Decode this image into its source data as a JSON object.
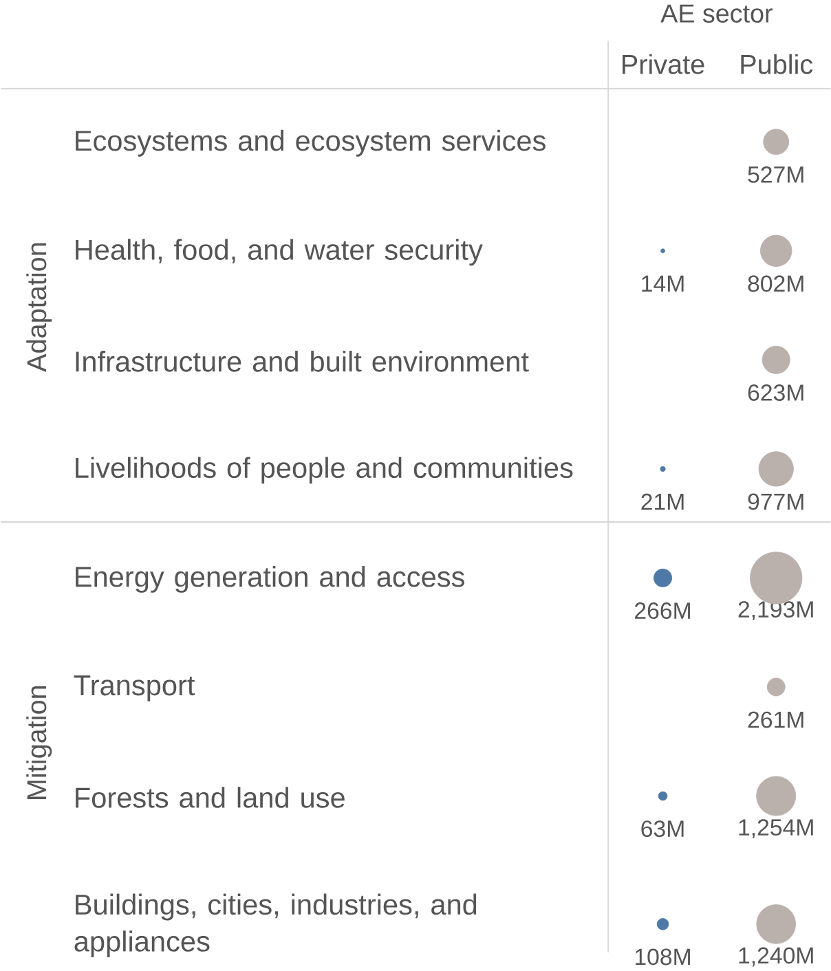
{
  "chart_data": {
    "type": "other",
    "xlabel": "AE sector",
    "categories": [
      "Ecosystems and ecosystem services",
      "Health, food, and water security",
      "Infrastructure and built environment",
      "Livelihoods of people and communities",
      "Energy generation and access",
      "Transport",
      "Forests and land use",
      "Buildings, cities, industries, and appliances"
    ],
    "series": [
      {
        "name": "Private",
        "colors": [
          null,
          "#4e79a7",
          null,
          "#4e79a7",
          "#4e79a7",
          null,
          "#4e79a7",
          "#4e79a7"
        ],
        "values": [
          null,
          14,
          null,
          21,
          266,
          null,
          63,
          108
        ],
        "value_labels": [
          null,
          "14M",
          null,
          "21M",
          "266M",
          null,
          "63M",
          "108M"
        ]
      },
      {
        "name": "Public",
        "colors": [
          "#bab0ac",
          "#bab0ac",
          "#bab0ac",
          "#bab0ac",
          "#bab0ac",
          "#bab0ac",
          "#bab0ac",
          "#bab0ac"
        ],
        "values": [
          527,
          802,
          623,
          977,
          2193,
          261,
          1254,
          1240
        ],
        "value_labels": [
          "527M",
          "802M",
          "623M",
          "977M",
          "2,193M",
          "261M",
          "1,254M",
          "1,240M"
        ]
      }
    ],
    "annotations": [
      "Adaptation",
      "Mitigation"
    ]
  }
}
